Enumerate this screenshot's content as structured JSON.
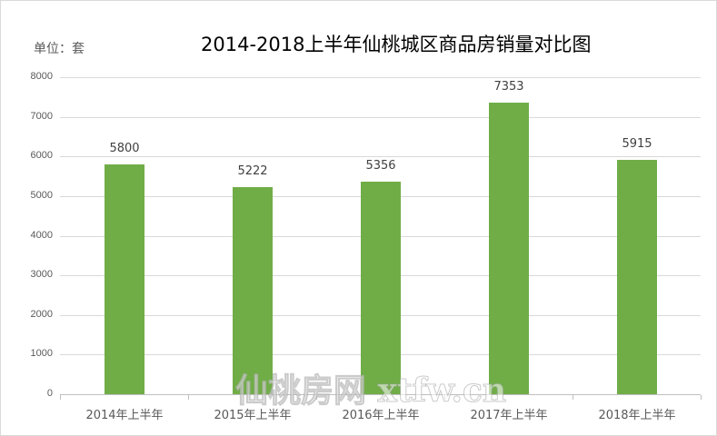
{
  "chart_data": {
    "type": "bar",
    "title": "2014-2018上半年仙桃城区商品房销量对比图",
    "unit_label": "单位：套",
    "xlabel": "",
    "ylabel": "",
    "categories": [
      "2014年上半年",
      "2015年上半年",
      "2016年上半年",
      "2017年上半年",
      "2018年上半年"
    ],
    "values": [
      5800,
      5222,
      5356,
      7353,
      5915
    ],
    "ylim": [
      0,
      8000
    ],
    "yticks": [
      0,
      1000,
      2000,
      3000,
      4000,
      5000,
      6000,
      7000,
      8000
    ],
    "grid": true,
    "legend": "none",
    "data_labels": true,
    "bar_color": "#70ad47"
  },
  "watermark": "仙桃房网 xtfw.cn"
}
